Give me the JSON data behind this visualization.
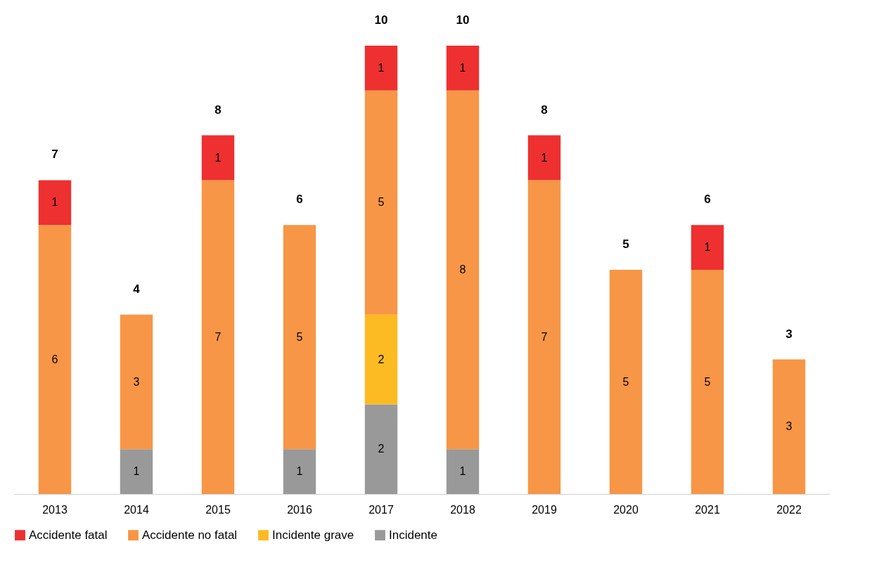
{
  "chart_data": {
    "type": "bar",
    "stacked": true,
    "categories": [
      "2013",
      "2014",
      "2015",
      "2016",
      "2017",
      "2018",
      "2019",
      "2020",
      "2021",
      "2022"
    ],
    "series": [
      {
        "name": "Incidente",
        "color": "#999999",
        "values": [
          null,
          1,
          null,
          1,
          2,
          1,
          null,
          null,
          null,
          null
        ]
      },
      {
        "name": "Incidente grave",
        "color": "#fcbb22",
        "values": [
          null,
          null,
          null,
          null,
          2,
          null,
          null,
          null,
          null,
          null
        ]
      },
      {
        "name": "Accidente no fatal",
        "color": "#f79646",
        "values": [
          6,
          3,
          7,
          5,
          5,
          8,
          7,
          5,
          5,
          3
        ]
      },
      {
        "name": "Accidente fatal",
        "color": "#ee3030",
        "values": [
          1,
          null,
          1,
          null,
          1,
          1,
          1,
          null,
          1,
          null
        ]
      }
    ],
    "totals": [
      "7",
      "4",
      "8",
      "6",
      "10",
      "10",
      "8",
      "5",
      "6",
      "3"
    ],
    "data_labels": true,
    "legend": "bottom",
    "grid": false,
    "tick_labels": "x"
  }
}
